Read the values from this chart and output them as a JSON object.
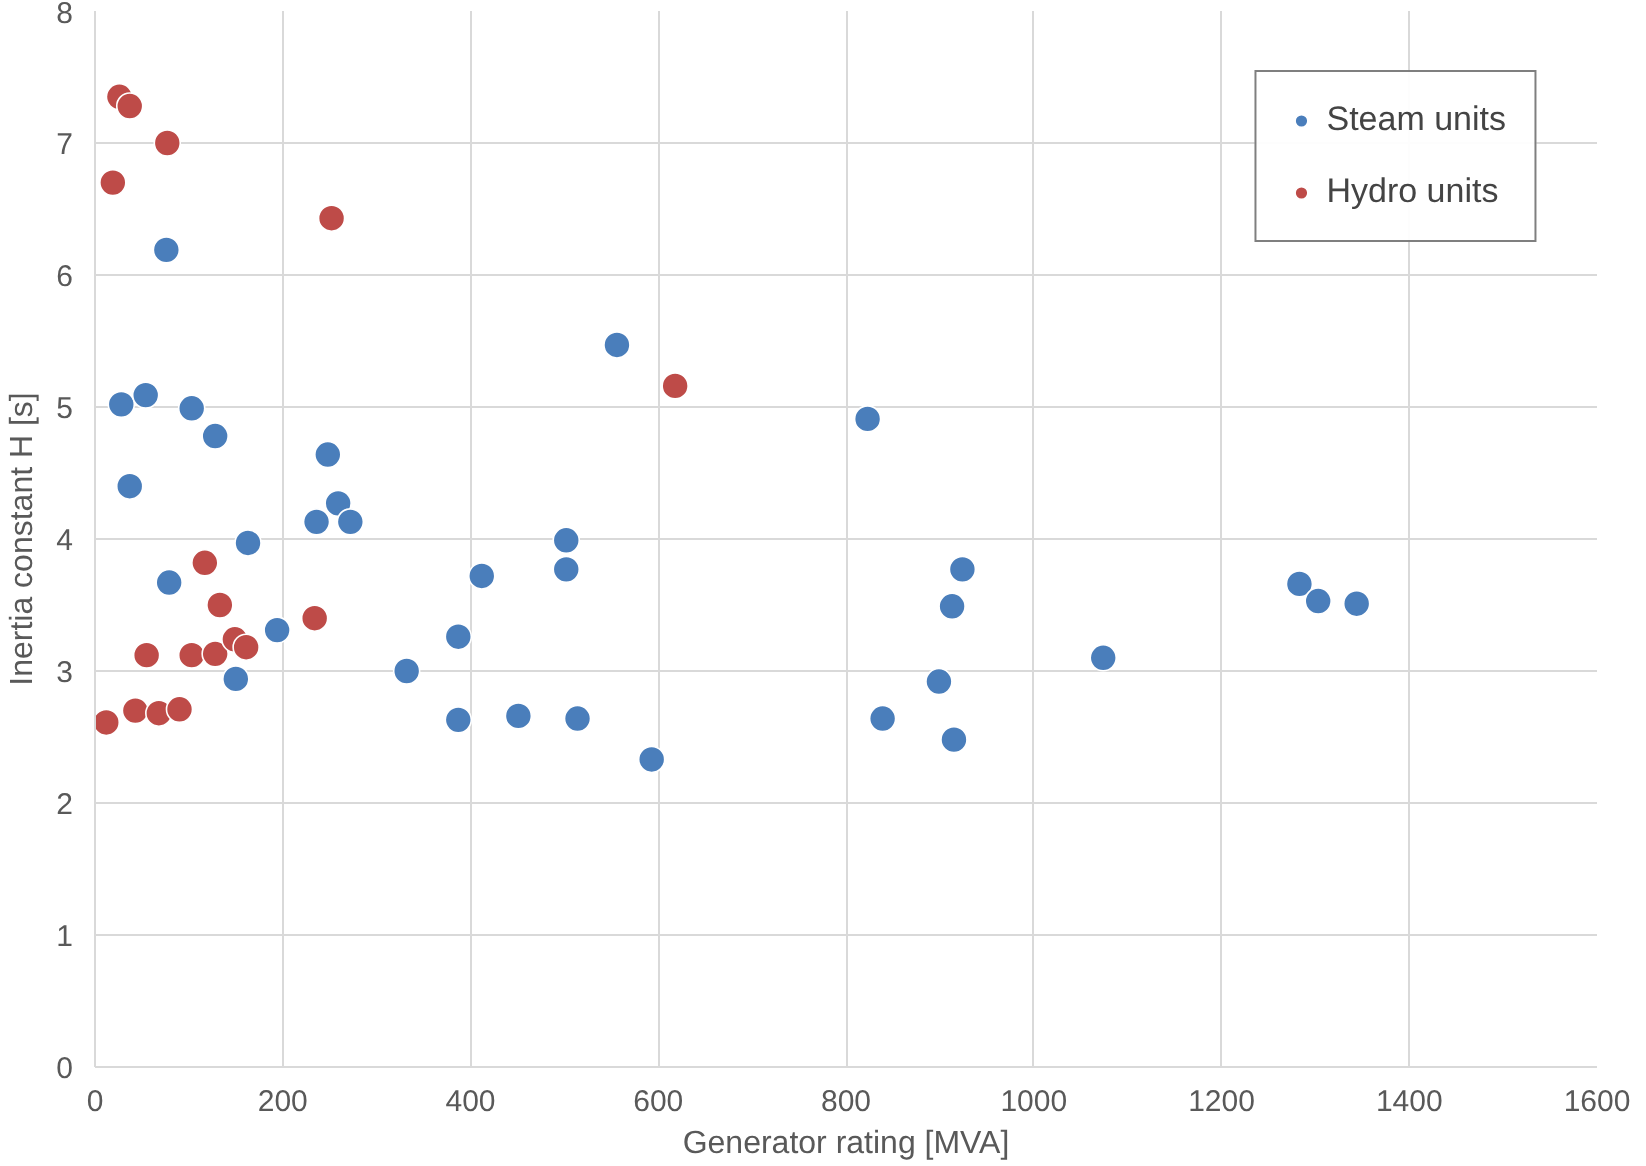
{
  "chart_data": {
    "type": "scatter",
    "xlabel": "Generator rating [MVA]",
    "ylabel": "Inertia constant H [s]",
    "xlim": [
      0,
      1600
    ],
    "xticks": [
      0,
      200,
      400,
      600,
      800,
      1000,
      1200,
      1400,
      1600
    ],
    "ylim": [
      0,
      8
    ],
    "yticks": [
      0,
      1,
      2,
      3,
      4,
      5,
      6,
      7,
      8
    ],
    "grid": true,
    "legend": "top right",
    "marker": "circle",
    "series": [
      {
        "name": "Steam units",
        "color": "#4a7ebb",
        "x": [
          76,
          28,
          54,
          103,
          128,
          37,
          248,
          259,
          236,
          272,
          163,
          79,
          194,
          150,
          332,
          387,
          412,
          502,
          502,
          387,
          451,
          514,
          593,
          556,
          823,
          924,
          913,
          899,
          839,
          915,
          1074,
          1283,
          1303,
          1344
        ],
        "values": [
          6.19,
          5.02,
          5.09,
          4.99,
          4.78,
          4.4,
          4.64,
          4.27,
          4.13,
          4.13,
          3.97,
          3.67,
          3.31,
          2.94,
          3.0,
          3.26,
          3.72,
          3.99,
          3.77,
          2.63,
          2.66,
          2.64,
          2.33,
          5.47,
          4.91,
          3.77,
          3.49,
          2.92,
          2.64,
          2.48,
          3.1,
          3.66,
          3.53,
          3.51
        ]
      },
      {
        "name": "Hydro units",
        "color": "#be4b48",
        "x": [
          26,
          37,
          77,
          19,
          252,
          618,
          117,
          133,
          234,
          55,
          103,
          128,
          149,
          161,
          12,
          43,
          68,
          90
        ],
        "values": [
          7.35,
          7.28,
          7.0,
          6.7,
          6.43,
          5.16,
          3.82,
          3.5,
          3.4,
          3.12,
          3.12,
          3.13,
          3.24,
          3.18,
          2.61,
          2.7,
          2.68,
          2.71
        ]
      }
    ]
  }
}
